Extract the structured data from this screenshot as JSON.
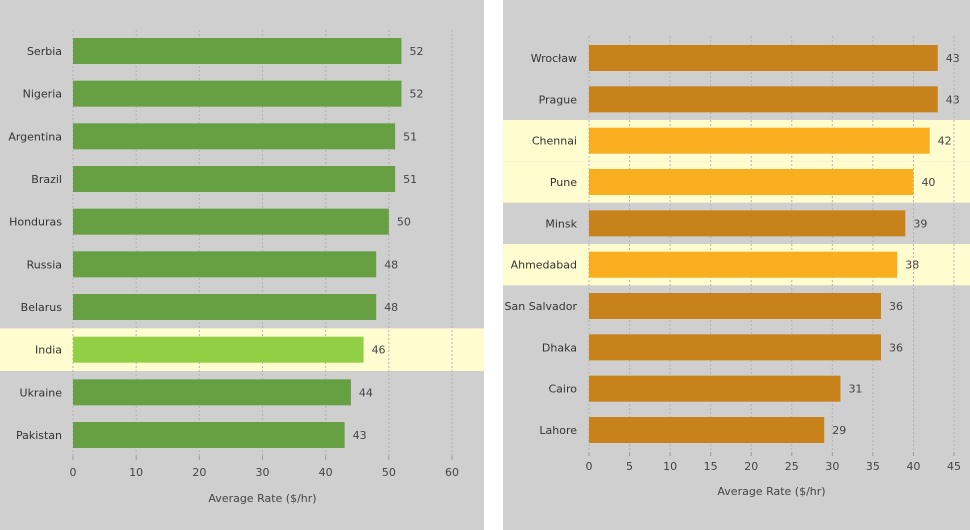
{
  "chart_data": [
    {
      "type": "bar",
      "orientation": "horizontal",
      "categories": [
        "Serbia",
        "Nigeria",
        "Argentina",
        "Brazil",
        "Honduras",
        "Russia",
        "Belarus",
        "India",
        "Ukraine",
        "Pakistan"
      ],
      "values": [
        52,
        52,
        51,
        51,
        50,
        48,
        48,
        46,
        44,
        43
      ],
      "highlighted": [
        "India"
      ],
      "xlabel": "Average Rate ($/hr)",
      "xlim": [
        0,
        60
      ],
      "xticks": [
        0,
        10,
        20,
        30,
        40,
        50,
        60
      ],
      "grid": true,
      "colors": {
        "bar": "#66a043",
        "bar_highlight": "#91cf44",
        "band_highlight": "#fffcd0",
        "background": "#cfcfcf",
        "grid": "#b3b3b3"
      }
    },
    {
      "type": "bar",
      "orientation": "horizontal",
      "categories": [
        "Wrocław",
        "Prague",
        "Chennai",
        "Pune",
        "Minsk",
        "Ahmedabad",
        "San Salvador",
        "Dhaka",
        "Cairo",
        "Lahore"
      ],
      "values": [
        43,
        43,
        42,
        40,
        39,
        38,
        36,
        36,
        31,
        29
      ],
      "highlighted": [
        "Chennai",
        "Pune",
        "Ahmedabad"
      ],
      "xlabel": "Average Rate ($/hr)",
      "xlim": [
        0,
        45
      ],
      "xticks": [
        0,
        5,
        10,
        15,
        20,
        25,
        30,
        35,
        40,
        45
      ],
      "grid": true,
      "colors": {
        "bar": "#c8821c",
        "bar_highlight": "#f8ae1e",
        "band_highlight": "#fffcd0",
        "background": "#cfcfcf",
        "grid": "#b3b3b3"
      }
    }
  ]
}
